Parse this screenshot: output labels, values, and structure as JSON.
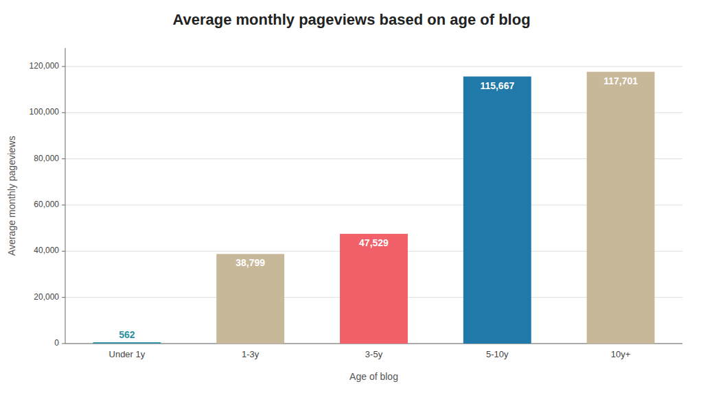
{
  "chart_data": {
    "type": "bar",
    "title": "Average monthly pageviews based on age of blog",
    "xlabel": "Age of blog",
    "ylabel": "Average monthly pageviews",
    "categories": [
      "Under 1y",
      "1-3y",
      "3-5y",
      "5-10y",
      "10y+"
    ],
    "values": [
      562,
      38799,
      47529,
      115667,
      117701
    ],
    "value_labels": [
      "562",
      "38,799",
      "47,529",
      "115,667",
      "117,701"
    ],
    "data_labels": true,
    "colors": [
      "#2e8fa3",
      "#c8b89a",
      "#f2606a",
      "#2079a8",
      "#c8b89a"
    ],
    "ylim": [
      0,
      128000
    ],
    "yticks": [
      0,
      {
        "value": 20000,
        "label": "20,000"
      },
      {
        "value": 40000,
        "label": "40,000"
      },
      {
        "value": 60000,
        "label": "60,000"
      },
      {
        "value": 80000,
        "label": "80,000"
      },
      {
        "value": 100000,
        "label": "100,000"
      },
      {
        "value": 120000,
        "label": "120,000"
      }
    ],
    "grid": true
  }
}
